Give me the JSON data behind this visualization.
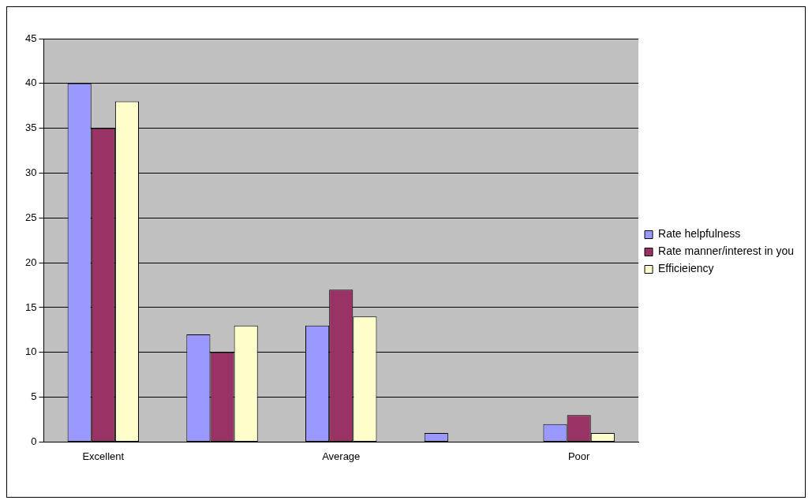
{
  "chart_data": {
    "type": "bar",
    "categories": [
      "Excellent",
      null,
      "Average",
      null,
      "Poor"
    ],
    "series": [
      {
        "name": "Rate helpfulness",
        "color": "#9999ff",
        "values": [
          40,
          12,
          13,
          1,
          2
        ]
      },
      {
        "name": "Rate manner/interest in you",
        "color": "#993366",
        "values": [
          35,
          10,
          17,
          0,
          3
        ]
      },
      {
        "name": "Efficieiency",
        "color": "#ffffcc",
        "values": [
          38,
          13,
          14,
          0,
          1
        ]
      }
    ],
    "ylim": [
      0,
      45
    ],
    "yticks": [
      0,
      5,
      10,
      15,
      20,
      25,
      30,
      35,
      40,
      45
    ],
    "grid": "y",
    "legend": "right"
  }
}
